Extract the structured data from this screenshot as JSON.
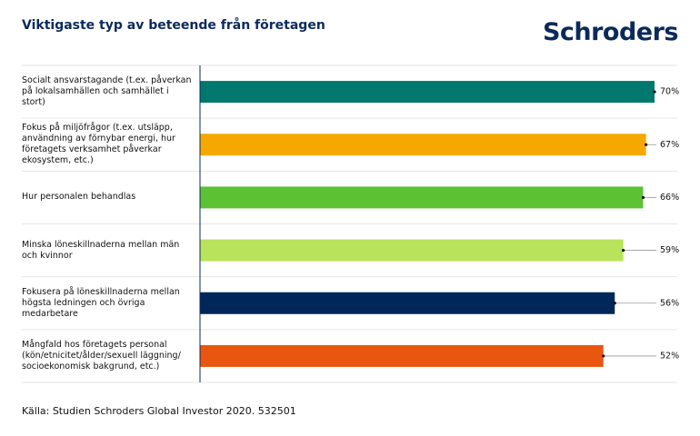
{
  "chart_data": {
    "type": "bar",
    "orientation": "horizontal",
    "title": "Viktigaste typ av beteende från företagen",
    "logo": "Schroders",
    "source": "Källa: Studien Schroders Global Investor 2020. 532501",
    "categories": [
      "Socialt ansvarstagande (t.ex. påverkan på lokalsamhällen och samhället i stort)",
      "Fokus på miljöfrågor (t.ex. utsläpp, användning av förnybar energi, hur företagets verksamhet påverkar ekosystem, etc.)",
      "Hur personalen behandlas",
      "Minska löneskillnaderna mellan män och kvinnor",
      "Fokusera på löneskillnaderna mellan högsta ledningen och övriga medarbetare",
      "Mångfald hos företagets personal (kön/etnicitet/ålder/sexuell läggning/ socioekonomisk bakgrund, etc.)"
    ],
    "values": [
      70,
      67,
      66,
      59,
      56,
      52
    ],
    "value_labels": [
      "70%",
      "67%",
      "66%",
      "59%",
      "56%",
      "52%"
    ],
    "colors": [
      "#00786e",
      "#f5a800",
      "#5cc234",
      "#b9e35a",
      "#002759",
      "#e8560f"
    ],
    "xlim": [
      -90,
      70
    ]
  }
}
